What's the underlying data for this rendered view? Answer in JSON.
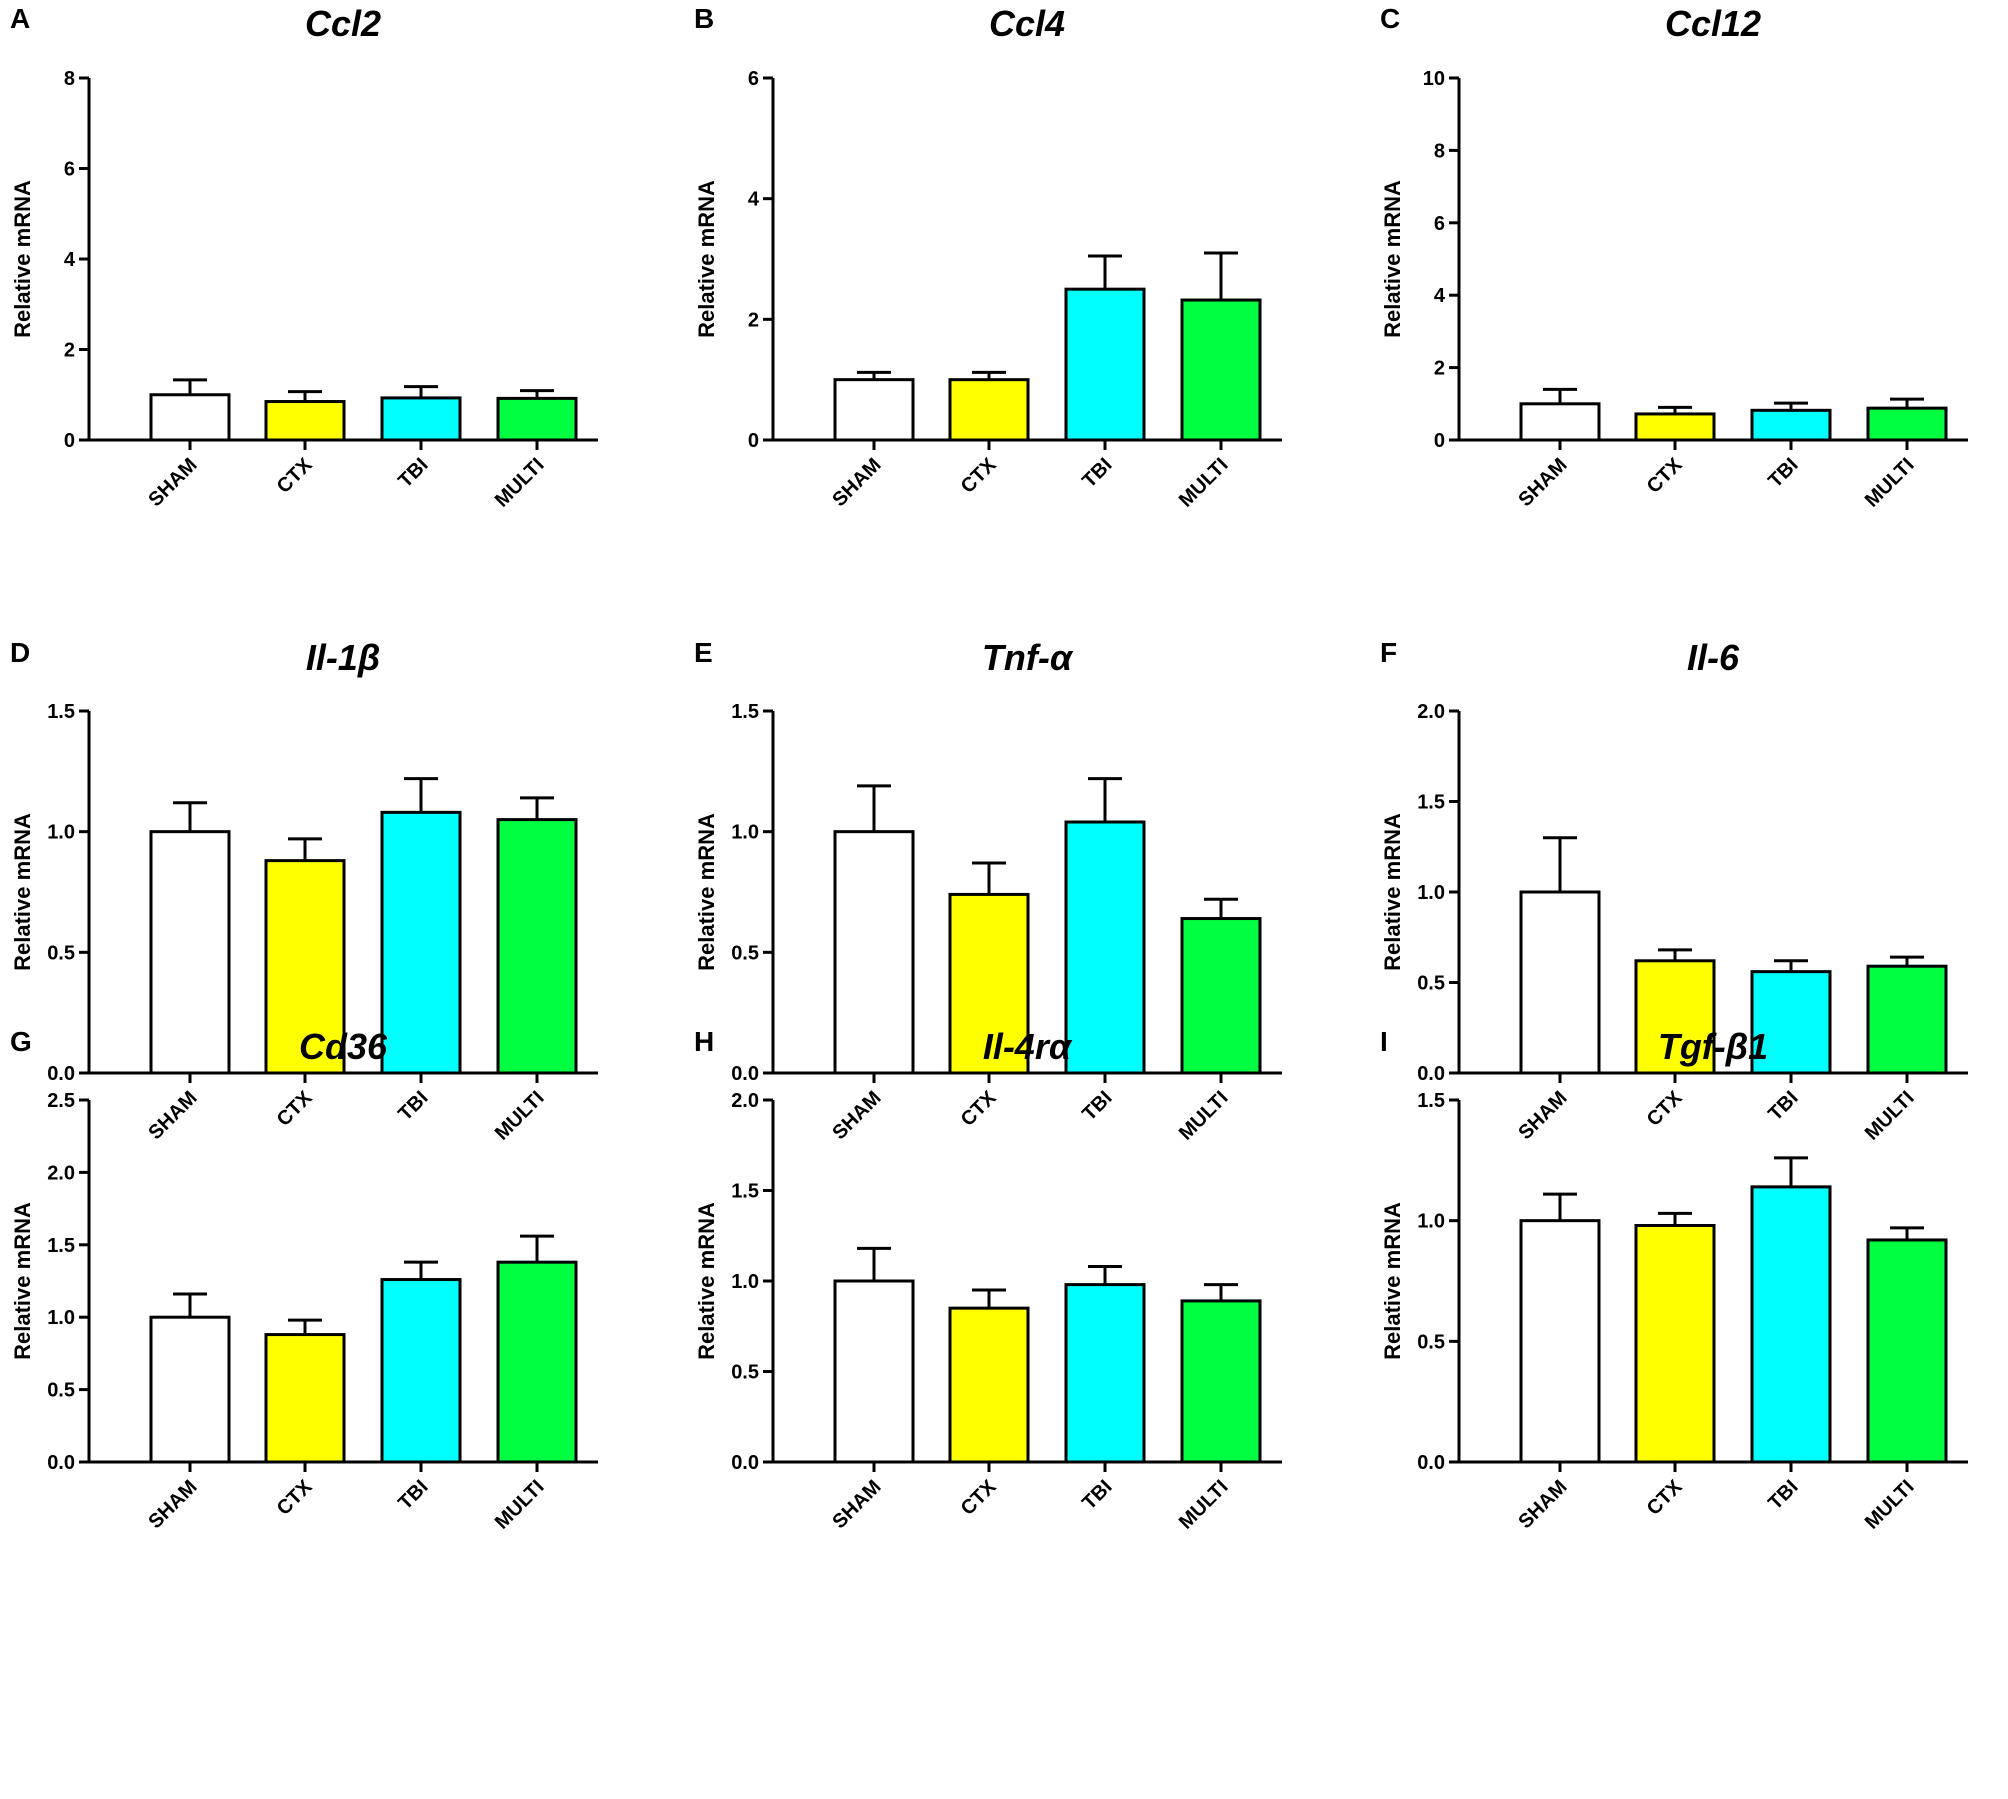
{
  "colors": {
    "SHAM": "#ffffff",
    "CTX": "#ffff00",
    "TBI": "#00ffff",
    "MULTI": "#00ff40"
  },
  "chart_data": [
    {
      "panel": "A",
      "title": "Ccl2",
      "type": "bar",
      "ylabel": "Relative mRNA",
      "categories": [
        "SHAM",
        "CTX",
        "TBI",
        "MULTI"
      ],
      "values": [
        1.0,
        0.85,
        0.93,
        0.92
      ],
      "errors": [
        0.33,
        0.22,
        0.25,
        0.17
      ],
      "ylim": [
        0,
        8
      ],
      "yticks": [
        "0",
        "2",
        "4",
        "6",
        "8"
      ]
    },
    {
      "panel": "B",
      "title": "Ccl4",
      "type": "bar",
      "ylabel": "Relative mRNA",
      "categories": [
        "SHAM",
        "CTX",
        "TBI",
        "MULTI"
      ],
      "values": [
        1.0,
        1.0,
        2.5,
        2.32
      ],
      "errors": [
        0.12,
        0.12,
        0.55,
        0.78
      ],
      "ylim": [
        0,
        6
      ],
      "yticks": [
        "0",
        "2",
        "4",
        "6"
      ]
    },
    {
      "panel": "C",
      "title": "Ccl12",
      "type": "bar",
      "ylabel": "Relative mRNA",
      "categories": [
        "SHAM",
        "CTX",
        "TBI",
        "MULTI"
      ],
      "values": [
        1.0,
        0.72,
        0.82,
        0.88
      ],
      "errors": [
        0.4,
        0.18,
        0.2,
        0.25
      ],
      "ylim": [
        0,
        10
      ],
      "yticks": [
        "0",
        "2",
        "4",
        "6",
        "8",
        "10"
      ]
    },
    {
      "panel": "D",
      "title": "Il-1β",
      "type": "bar",
      "ylabel": "Relative mRNA",
      "categories": [
        "SHAM",
        "CTX",
        "TBI",
        "MULTI"
      ],
      "values": [
        1.0,
        0.88,
        1.08,
        1.05
      ],
      "errors": [
        0.12,
        0.09,
        0.14,
        0.09
      ],
      "ylim": [
        0,
        1.5
      ],
      "yticks": [
        "0.0",
        "0.5",
        "1.0",
        "1.5"
      ]
    },
    {
      "panel": "E",
      "title": "Tnf-α",
      "type": "bar",
      "ylabel": "Relative mRNA",
      "categories": [
        "SHAM",
        "CTX",
        "TBI",
        "MULTI"
      ],
      "values": [
        1.0,
        0.74,
        1.04,
        0.64
      ],
      "errors": [
        0.19,
        0.13,
        0.18,
        0.08
      ],
      "ylim": [
        0,
        1.5
      ],
      "yticks": [
        "0.0",
        "0.5",
        "1.0",
        "1.5"
      ]
    },
    {
      "panel": "F",
      "title": "Il-6",
      "type": "bar",
      "ylabel": "Relative mRNA",
      "categories": [
        "SHAM",
        "CTX",
        "TBI",
        "MULTI"
      ],
      "values": [
        1.0,
        0.62,
        0.56,
        0.59
      ],
      "errors": [
        0.3,
        0.06,
        0.06,
        0.05
      ],
      "ylim": [
        0,
        2.0
      ],
      "yticks": [
        "0.0",
        "0.5",
        "1.0",
        "1.5",
        "2.0"
      ]
    },
    {
      "panel": "G",
      "title": "Cd36",
      "type": "bar",
      "ylabel": "Relative mRNA",
      "categories": [
        "SHAM",
        "CTX",
        "TBI",
        "MULTI"
      ],
      "values": [
        1.0,
        0.88,
        1.26,
        1.38
      ],
      "errors": [
        0.16,
        0.1,
        0.12,
        0.18
      ],
      "ylim": [
        0,
        2.5
      ],
      "yticks": [
        "0.0",
        "0.5",
        "1.0",
        "1.5",
        "2.0",
        "2.5"
      ]
    },
    {
      "panel": "H",
      "title": "Il-4rα",
      "type": "bar",
      "ylabel": "Relative mRNA",
      "categories": [
        "SHAM",
        "CTX",
        "TBI",
        "MULTI"
      ],
      "values": [
        1.0,
        0.85,
        0.98,
        0.89
      ],
      "errors": [
        0.18,
        0.1,
        0.1,
        0.09
      ],
      "ylim": [
        0,
        2.0
      ],
      "yticks": [
        "0.0",
        "0.5",
        "1.0",
        "1.5",
        "2.0"
      ]
    },
    {
      "panel": "I",
      "title": "Tgf-β1",
      "type": "bar",
      "ylabel": "Relative mRNA",
      "categories": [
        "SHAM",
        "CTX",
        "TBI",
        "MULTI"
      ],
      "values": [
        1.0,
        0.98,
        1.14,
        0.92
      ],
      "errors": [
        0.11,
        0.05,
        0.12,
        0.05
      ],
      "ylim": [
        0,
        1.5
      ],
      "yticks": [
        "0.0",
        "0.5",
        "1.0",
        "1.5"
      ]
    }
  ]
}
